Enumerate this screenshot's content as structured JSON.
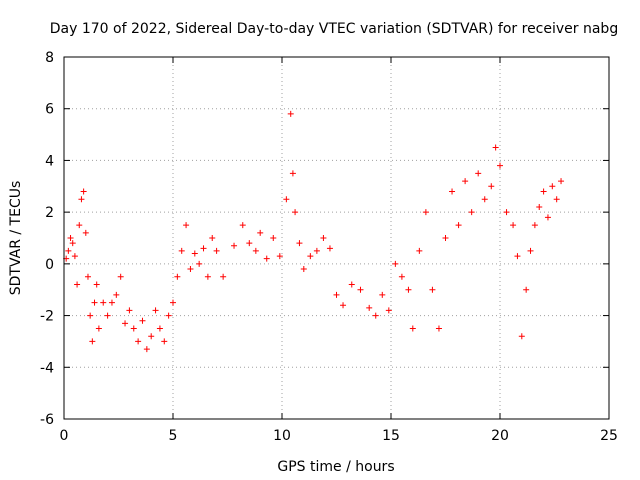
{
  "chart_data": {
    "type": "scatter",
    "title": "Day 170 of 2022, Sidereal Day-to-day VTEC variation (SDTVAR) for receiver nabg",
    "xlabel": "GPS time / hours",
    "ylabel": "SDTVAR / TECUs",
    "xlim": [
      0,
      25
    ],
    "ylim": [
      -6,
      8
    ],
    "xticks": [
      0,
      5,
      10,
      15,
      20,
      25
    ],
    "yticks": [
      -6,
      -4,
      -2,
      0,
      2,
      4,
      6,
      8
    ],
    "grid": true,
    "marker": "+",
    "color": "#ff0000",
    "series": [
      {
        "name": "SDTVAR",
        "x": [
          0.1,
          0.2,
          0.3,
          0.4,
          0.5,
          0.6,
          0.7,
          0.8,
          0.9,
          1.0,
          1.1,
          1.2,
          1.3,
          1.4,
          1.5,
          1.6,
          1.8,
          2.0,
          2.2,
          2.4,
          2.6,
          2.8,
          3.0,
          3.2,
          3.4,
          3.6,
          3.8,
          4.0,
          4.2,
          4.4,
          4.6,
          4.8,
          5.0,
          5.2,
          5.4,
          5.6,
          5.8,
          6.0,
          6.2,
          6.4,
          6.6,
          6.8,
          7.0,
          7.3,
          7.8,
          8.2,
          8.5,
          8.8,
          9.0,
          9.3,
          9.6,
          9.9,
          10.2,
          10.4,
          10.5,
          10.6,
          10.8,
          11.0,
          11.3,
          11.6,
          11.9,
          12.2,
          12.5,
          12.8,
          13.2,
          13.6,
          14.0,
          14.3,
          14.6,
          14.9,
          15.2,
          15.5,
          15.8,
          16.0,
          16.3,
          16.6,
          16.9,
          17.2,
          17.5,
          17.8,
          18.1,
          18.4,
          18.7,
          19.0,
          19.3,
          19.6,
          19.8,
          20.0,
          20.3,
          20.6,
          20.8,
          21.0,
          21.2,
          21.4,
          21.6,
          21.8,
          22.0,
          22.2,
          22.4,
          22.6,
          22.8
        ],
        "y": [
          0.2,
          0.5,
          1.0,
          0.8,
          0.3,
          -0.8,
          1.5,
          2.5,
          2.8,
          1.2,
          -0.5,
          -2.0,
          -3.0,
          -1.5,
          -0.8,
          -2.5,
          -1.5,
          -2.0,
          -1.5,
          -1.2,
          -0.5,
          -2.3,
          -1.8,
          -2.5,
          -3.0,
          -2.2,
          -3.3,
          -2.8,
          -1.8,
          -2.5,
          -3.0,
          -2.0,
          -1.5,
          -0.5,
          0.5,
          1.5,
          -0.2,
          0.4,
          0.0,
          0.6,
          -0.5,
          1.0,
          0.5,
          -0.5,
          0.7,
          1.5,
          0.8,
          0.5,
          1.2,
          0.2,
          1.0,
          0.3,
          2.5,
          5.8,
          3.5,
          2.0,
          0.8,
          -0.2,
          0.3,
          0.5,
          1.0,
          0.6,
          -1.2,
          -1.6,
          -0.8,
          -1.0,
          -1.7,
          -2.0,
          -1.2,
          -1.8,
          0.0,
          -0.5,
          -1.0,
          -2.5,
          0.5,
          2.0,
          -1.0,
          -2.5,
          1.0,
          2.8,
          1.5,
          3.2,
          2.0,
          3.5,
          2.5,
          3.0,
          4.5,
          3.8,
          2.0,
          1.5,
          0.3,
          -2.8,
          -1.0,
          0.5,
          1.5,
          2.2,
          2.8,
          1.8,
          3.0,
          2.5,
          3.2
        ]
      }
    ]
  }
}
